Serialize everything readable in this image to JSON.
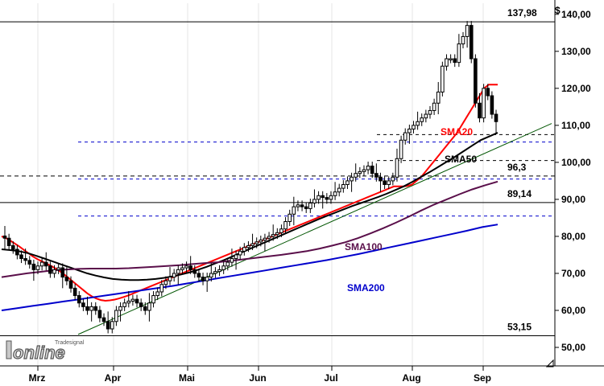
{
  "chart_data": {
    "type": "candlestick",
    "currency_label": "$",
    "y_axis": {
      "min": 45,
      "max": 143,
      "ticks": [
        "140,00",
        "130,00",
        "120,00",
        "110,00",
        "100,00",
        "90,00",
        "80,00",
        "70,00",
        "60,00",
        "50,00"
      ],
      "tick_values": [
        140,
        130,
        120,
        110,
        100,
        90,
        80,
        70,
        60,
        50
      ]
    },
    "x_axis": {
      "months": [
        "Mrz",
        "Apr",
        "Mai",
        "Jun",
        "Jul",
        "Aug",
        "Sep"
      ]
    },
    "levels": [
      {
        "label": "137,98",
        "value": 137.98,
        "style": "solid"
      },
      {
        "label": "96,3",
        "value": 96.3,
        "style": "dashed"
      },
      {
        "label": "89,14",
        "value": 89.14,
        "style": "solid"
      },
      {
        "label": "53,15",
        "value": 53.15,
        "style": "solid"
      }
    ],
    "guide_lines": [
      {
        "value": 107.5,
        "style": "dashed",
        "color": "#000000"
      },
      {
        "value": 105.5,
        "style": "dashed",
        "color": "#0000cc"
      },
      {
        "value": 100.5,
        "style": "dashed",
        "color": "#000000"
      },
      {
        "value": 95.5,
        "style": "dashed",
        "color": "#0000cc"
      },
      {
        "value": 85.5,
        "style": "dashed",
        "color": "#0000cc"
      }
    ],
    "closes": [
      79.5,
      77.5,
      76.5,
      75,
      74,
      73.5,
      72.5,
      71,
      72,
      73,
      72,
      70,
      71,
      71.5,
      69,
      68,
      66,
      64,
      62,
      61,
      60,
      61,
      60,
      58,
      57,
      55,
      57,
      60,
      61,
      62,
      62.5,
      63,
      62,
      61,
      60,
      62,
      64,
      65,
      67,
      68,
      69,
      70,
      71,
      71.5,
      72,
      71,
      70,
      69,
      68,
      69,
      70,
      70.5,
      71,
      72,
      73,
      74,
      75,
      76,
      77,
      77.5,
      78,
      78.5,
      79,
      79.5,
      80,
      80.5,
      81,
      82,
      84,
      86,
      88,
      88.5,
      88,
      87.5,
      89,
      90,
      91,
      90.5,
      90,
      91,
      92,
      93,
      94,
      95,
      96,
      97,
      97.5,
      98,
      99,
      97,
      96,
      95,
      94,
      95,
      96,
      101,
      106,
      108,
      109,
      110,
      111,
      112,
      113,
      114,
      116,
      119,
      126,
      128,
      128,
      127,
      132,
      134,
      137,
      128,
      116,
      112,
      120,
      118,
      113,
      111
    ],
    "series": [
      {
        "name": "SMA20",
        "color": "#ff0000",
        "label": "SMA20",
        "values": [
          80,
          79.5,
          78.8,
          78,
          77.2,
          76.3,
          75.4,
          74.5,
          73.8,
          73.2,
          72.6,
          72,
          71.3,
          70.5,
          69.6,
          68.6,
          67.6,
          66.6,
          65.6,
          64.6,
          63.8,
          63.2,
          62.8,
          62.6,
          62.7,
          62.9,
          63.2,
          63.6,
          64,
          64.5,
          65,
          65.5,
          66,
          66.5,
          67,
          67.5,
          68,
          68.5,
          69,
          69.5,
          70,
          70.5,
          71,
          71.5,
          72,
          72.5,
          73,
          73.5,
          74,
          74.5,
          75,
          75.5,
          76,
          76.5,
          77,
          77.5,
          78,
          78.5,
          79,
          79.5,
          80,
          80.5,
          81,
          81.5,
          82,
          82.5,
          83,
          83.5,
          84,
          84.5,
          85,
          85.5,
          86,
          86.5,
          87,
          87.5,
          88,
          88.5,
          89,
          89.5,
          90,
          90.5,
          91,
          91.5,
          92,
          92.5,
          93,
          93.5,
          93.5,
          93.5,
          93.6,
          94,
          95,
          96,
          97.5,
          99,
          100.5,
          102,
          103.5,
          105,
          106.5,
          108,
          110,
          112,
          114,
          116,
          118,
          120,
          121,
          121,
          121
        ]
      },
      {
        "name": "SMA50",
        "color": "#000000",
        "label": "SMA50",
        "values": [
          76.5,
          76.3,
          76,
          75.5,
          74.8,
          74,
          73.2,
          72.4,
          71.6,
          70.8,
          70,
          69.4,
          68.9,
          68.5,
          68.3,
          68.2,
          68.2,
          68.3,
          68.5,
          68.8,
          69.2,
          69.7,
          70.3,
          71,
          71.8,
          72.7,
          73.6,
          74.6,
          75.6,
          76.6,
          77.6,
          78.6,
          79.6,
          80.6,
          81.6,
          82.6,
          83.6,
          84.6,
          85.5,
          86.4,
          87.3,
          88.2,
          89,
          89.8,
          90.6,
          91.5,
          92.5,
          93.5,
          94.7,
          96,
          97.3,
          98.7,
          100.1,
          101.5,
          103,
          104.5,
          106,
          107,
          108
        ]
      },
      {
        "name": "SMA100",
        "color": "#5a0f4a",
        "label": "SMA100",
        "values": [
          69,
          69.5,
          70,
          70.4,
          70.8,
          71,
          71.2,
          71.3,
          71.3,
          71.3,
          71.4,
          71.6,
          71.8,
          72,
          72.2,
          72.5,
          72.8,
          73,
          73.4,
          73.8,
          74.2,
          74.6,
          75,
          75.5,
          76,
          76.7,
          77.5,
          78.4,
          79.5,
          80.8,
          82.2,
          83.7,
          85.3,
          87,
          88.6,
          90,
          91.4,
          92.7,
          93.8,
          94.8
        ]
      },
      {
        "name": "SMA200",
        "color": "#0000cc",
        "label": "SMA200",
        "values": [
          60,
          60.6,
          61.2,
          61.8,
          62.4,
          63,
          63.6,
          64.2,
          64.8,
          65.4,
          66,
          66.6,
          67.3,
          68,
          68.7,
          69.4,
          70.1,
          70.8,
          71.5,
          72.2,
          72.9,
          73.6,
          74.4,
          75.2,
          76.1,
          77,
          77.9,
          78.8,
          79.7,
          80.6,
          81.5,
          82.5,
          83.2
        ]
      }
    ]
  },
  "logo": {
    "brand": "Tradesignal",
    "word": "online"
  }
}
